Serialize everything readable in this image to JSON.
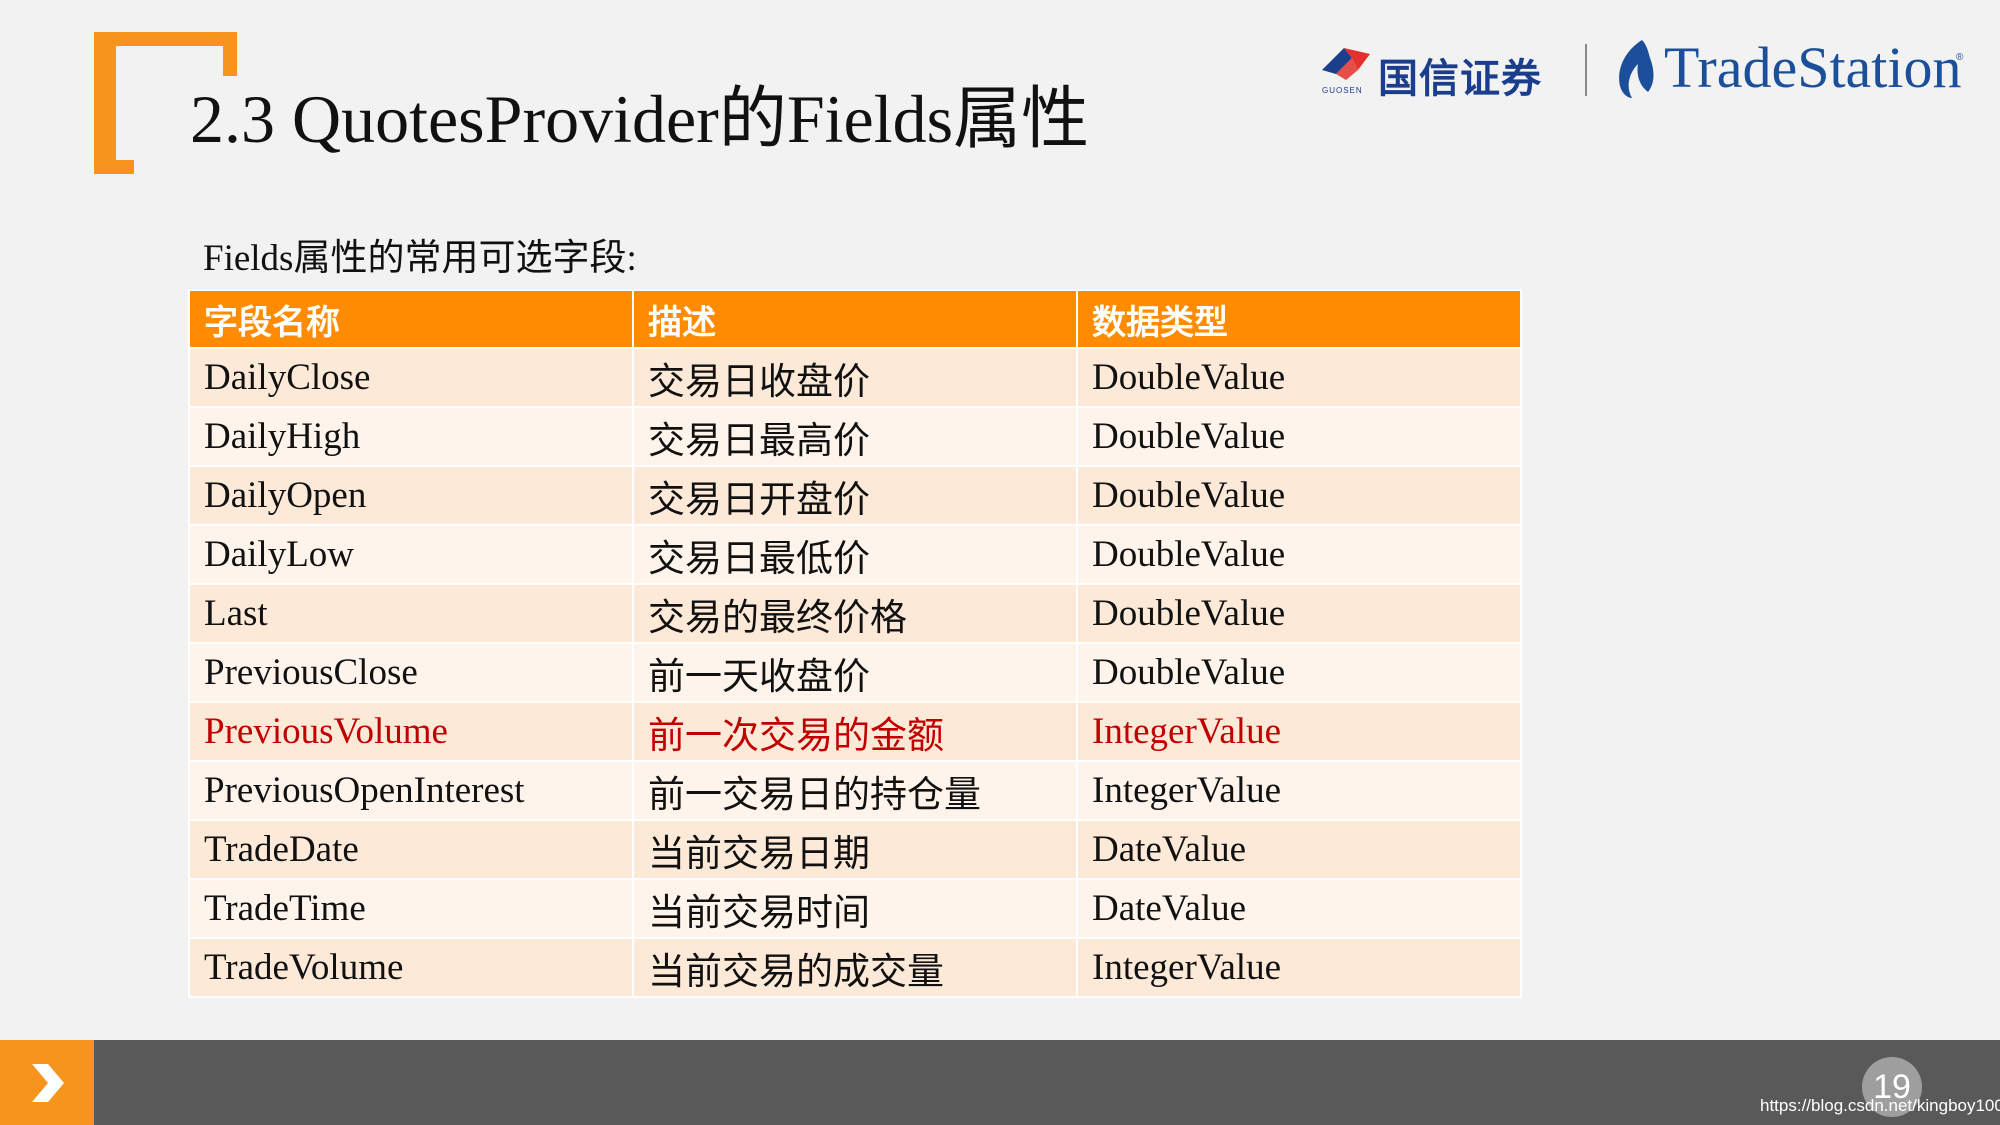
{
  "slide": {
    "title": "2.3 QuotesProvider的Fields属性",
    "intro": "Fields属性的常用可选字段:",
    "page_number": "19",
    "watermark": "https://blog.csdn.net/kingboy100"
  },
  "logos": {
    "guosen_name": "国信证券",
    "guosen_sub": "GUOSEN",
    "tradestation_name": "TradeStation",
    "tradestation_reg": "®"
  },
  "colors": {
    "accent": "#f7941d",
    "header": "#ff8c00",
    "highlight_text": "#c00000",
    "footer": "#595959"
  },
  "table": {
    "headers": [
      "字段名称",
      "描述",
      "数据类型"
    ],
    "rows": [
      {
        "field": "DailyClose",
        "desc": "交易日收盘价",
        "type": "DoubleValue"
      },
      {
        "field": "DailyHigh",
        "desc": "交易日最高价",
        "type": "DoubleValue"
      },
      {
        "field": "DailyOpen",
        "desc": "交易日开盘价",
        "type": "DoubleValue"
      },
      {
        "field": "DailyLow",
        "desc": "交易日最低价",
        "type": "DoubleValue"
      },
      {
        "field": "Last",
        "desc": "交易的最终价格",
        "type": "DoubleValue"
      },
      {
        "field": "PreviousClose",
        "desc": "前一天收盘价",
        "type": "DoubleValue"
      },
      {
        "field": "PreviousVolume",
        "desc": "前一次交易的金额",
        "type": "IntegerValue"
      },
      {
        "field": "PreviousOpenInterest",
        "desc": "前一交易日的持仓量",
        "type": "IntegerValue"
      },
      {
        "field": "TradeDate",
        "desc": "当前交易日期",
        "type": "DateValue"
      },
      {
        "field": "TradeTime",
        "desc": "当前交易时间",
        "type": "DateValue"
      },
      {
        "field": "TradeVolume",
        "desc": "当前交易的成交量",
        "type": "IntegerValue"
      }
    ]
  }
}
